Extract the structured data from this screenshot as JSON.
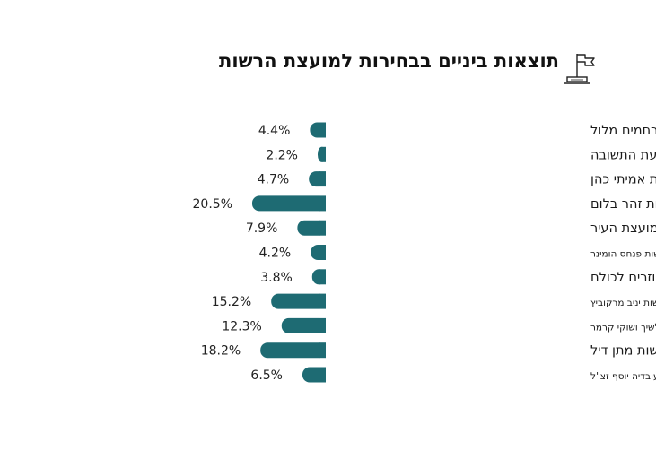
{
  "header": {
    "title": "תוצאות ביניים בבחירות למועצת הרשות",
    "icon": "flag-on-podium-icon"
  },
  "colors": {
    "bar": "#1e6b73",
    "text": "#1a1a1a"
  },
  "chart_data": {
    "type": "bar",
    "orientation": "horizontal",
    "title": "תוצאות ביניים בבחירות למועצת הרשות",
    "value_suffix": "%",
    "categories": [
      "אחדות בראשות רחמים מלול",
      "דגל התורה ותנועת התשובה",
      "הבית של כולנו בראשות אמיתי כהן",
      "החינוך בראש בראשות זהר בלום",
      "הליכוד בראשות אביב איטח למועצת העיר",
      "הרשימה החסידית חברתית אגודת ישראל ובלתי מפלגתיים בראשות פנחס הומינר",
      "חב\"ד בעירייה עוזרים לכולם",
      "רחובות אחת כחול לבן העבודה ישראל ביתנו בראשות יניב מרקוביץ",
      "רחובות חופשית ומאוחדת בראשות איטל בציר אלשיך ושוקי קרמר",
      "רחובותי בראשות מתן דיל",
      "שס בראשות אלדד גדסי מיסודו של מרן הרב עובדיה יוסף זצ\"ל"
    ],
    "values": [
      4.4,
      2.2,
      4.7,
      20.5,
      7.9,
      4.2,
      3.8,
      15.2,
      12.3,
      18.2,
      6.5
    ],
    "value_labels": [
      "4.4%",
      "2.2%",
      "4.7%",
      "20.5%",
      "7.9%",
      "4.2%",
      "3.8%",
      "15.2%",
      "12.3%",
      "18.2%",
      "6.5%"
    ],
    "xlim": [
      0,
      20.5
    ],
    "grid": false,
    "legend": "none"
  }
}
